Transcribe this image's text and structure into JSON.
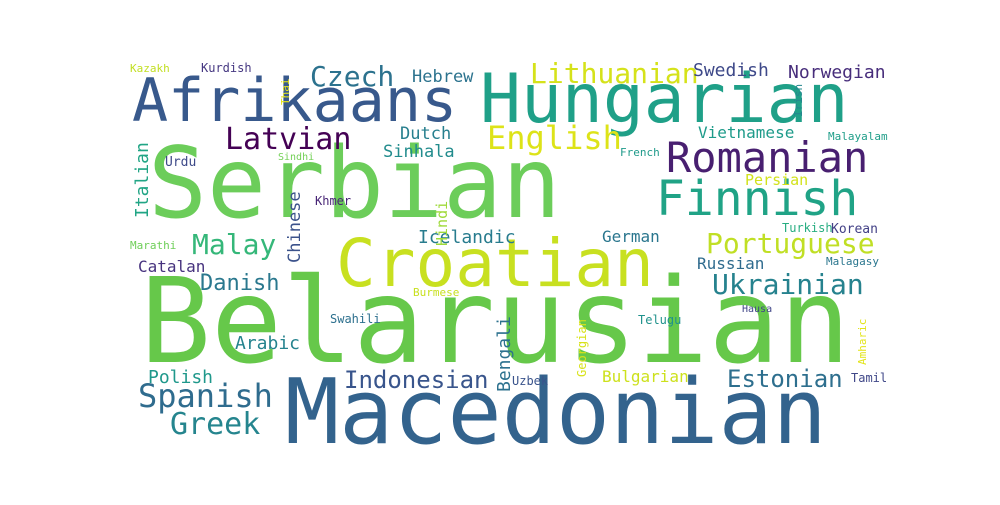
{
  "chart_data": {
    "type": "wordcloud",
    "words": [
      {
        "text": "Belarusian",
        "color": "#66c84a"
      },
      {
        "text": "Macedonian",
        "color": "#33638d"
      },
      {
        "text": "Serbian",
        "color": "#6ccd5a"
      },
      {
        "text": "Hungarian",
        "color": "#1fa088"
      },
      {
        "text": "Croatian",
        "color": "#c8e020"
      },
      {
        "text": "Afrikaans",
        "color": "#38598c"
      },
      {
        "text": "Romanian",
        "color": "#481f70"
      },
      {
        "text": "Finnish",
        "color": "#20a386"
      },
      {
        "text": "Portuguese",
        "color": "#c0df25"
      },
      {
        "text": "Ukrainian",
        "color": "#26828e"
      },
      {
        "text": "Latvian",
        "color": "#440154"
      },
      {
        "text": "Czech",
        "color": "#2c728e"
      },
      {
        "text": "English",
        "color": "#dde318"
      },
      {
        "text": "Lithuanian",
        "color": "#d5e21a"
      },
      {
        "text": "Spanish",
        "color": "#2f6c8e"
      },
      {
        "text": "Greek",
        "color": "#25858e"
      },
      {
        "text": "Indonesian",
        "color": "#39558c"
      },
      {
        "text": "Estonian",
        "color": "#2e6f8e"
      },
      {
        "text": "Malay",
        "color": "#35b779"
      },
      {
        "text": "Swedish",
        "color": "#3e4989"
      },
      {
        "text": "Norwegian",
        "color": "#472d7b"
      },
      {
        "text": "Danish",
        "color": "#2a788e"
      },
      {
        "text": "Hebrew",
        "color": "#2c738e"
      },
      {
        "text": "Dutch",
        "color": "#277f8e"
      },
      {
        "text": "Sinhala",
        "color": "#228c8d"
      },
      {
        "text": "Vietnamese",
        "color": "#1e9b8a"
      },
      {
        "text": "Icelandic",
        "color": "#287c8e"
      },
      {
        "text": "German",
        "color": "#2a768e"
      },
      {
        "text": "Russian",
        "color": "#2f6b8e"
      },
      {
        "text": "Catalan",
        "color": "#46327e"
      },
      {
        "text": "Arabic",
        "color": "#25838e"
      },
      {
        "text": "Polish",
        "color": "#1f988b"
      },
      {
        "text": "Bulgarian",
        "color": "#cde11d"
      },
      {
        "text": "Bengali",
        "color": "#2c718e"
      },
      {
        "text": "Chinese",
        "color": "#3b528b"
      },
      {
        "text": "Italian",
        "color": "#21a585"
      },
      {
        "text": "Hindi",
        "color": "#9fda3a"
      },
      {
        "text": "Persian",
        "color": "#d2e21b"
      },
      {
        "text": "Turkish",
        "color": "#27ad81"
      },
      {
        "text": "Korean",
        "color": "#424086"
      },
      {
        "text": "Urdu",
        "color": "#3e4a89"
      },
      {
        "text": "Khmer",
        "color": "#482576"
      },
      {
        "text": "Swahili",
        "color": "#2d708e"
      },
      {
        "text": "Telugu",
        "color": "#20928c"
      },
      {
        "text": "Georgian",
        "color": "#d8e219"
      },
      {
        "text": "Uzbek",
        "color": "#3a548c"
      },
      {
        "text": "Amharic",
        "color": "#e2e418"
      },
      {
        "text": "Tamil",
        "color": "#3f4788"
      },
      {
        "text": "Kazakh",
        "color": "#c2df23"
      },
      {
        "text": "Kurdish",
        "color": "#453781"
      },
      {
        "text": "Thai",
        "color": "#e5e419"
      },
      {
        "text": "Irish",
        "color": "#24878e"
      },
      {
        "text": "Malayalam",
        "color": "#1f9e89"
      },
      {
        "text": "French",
        "color": "#1f9a8a"
      },
      {
        "text": "Sindhi",
        "color": "#73d056"
      },
      {
        "text": "Marathi",
        "color": "#6ece58"
      },
      {
        "text": "Malagasy",
        "color": "#2a768e"
      },
      {
        "text": "Burmese",
        "color": "#c8e020"
      },
      {
        "text": "Hausa",
        "color": "#404688"
      }
    ]
  }
}
